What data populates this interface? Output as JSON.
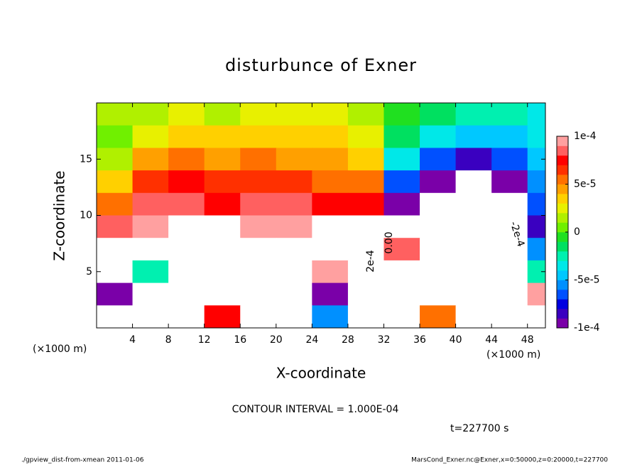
{
  "chart_data": {
    "type": "heatmap",
    "title": "disturbunce of Exner",
    "x_label": "X-coordinate",
    "y_label": "Z-coordinate",
    "x_unit_label": "(×1000 m)",
    "contour_interval_label": "CONTOUR INTERVAL = 1.000E-04",
    "time_label": "t=227700 s",
    "footer_left": "./gpview_dist-from-xmean  2011-01-06",
    "footer_right": "MarsCond_Exner.nc@Exner,x=0:50000,z=0:20000,t=227700",
    "annotations": [
      "2e-4",
      "0.00",
      "-2e-4"
    ],
    "xlim": [
      0,
      50
    ],
    "ylim": [
      0,
      20
    ],
    "xticks": [
      4,
      8,
      12,
      16,
      20,
      24,
      28,
      32,
      36,
      40,
      44,
      48
    ],
    "yticks": [
      5,
      10,
      15
    ],
    "clim": [
      -0.0001,
      0.0001
    ],
    "cticks": [
      {
        "value": 0.0001,
        "label": "1e-4"
      },
      {
        "value": 5e-05,
        "label": "5e-5"
      },
      0,
      {
        "value": -5e-05,
        "label": "-5e-5"
      },
      {
        "value": -0.0001,
        "label": "-1e-4"
      }
    ],
    "colors": [
      "#7a00a8",
      "#3a00c0",
      "#0000e0",
      "#0050ff",
      "#0090ff",
      "#00c8ff",
      "#00e8e8",
      "#00f0b0",
      "#00e060",
      "#20e020",
      "#70f000",
      "#b0f000",
      "#e8f000",
      "#ffd000",
      "#ffa000",
      "#ff7000",
      "#ff3000",
      "#ff0000",
      "#ff6060",
      "#ffa0a0"
    ],
    "x": [
      2,
      6,
      10,
      14,
      18,
      22,
      26,
      30,
      34,
      38,
      42,
      46,
      50
    ],
    "y": [
      19,
      17,
      15,
      13,
      11,
      9,
      7,
      5,
      3,
      1
    ],
    "values": [
      [
        1e-05,
        1.5e-05,
        2e-05,
        1.5e-05,
        2e-05,
        2e-05,
        2e-05,
        1.5e-05,
        -1e-05,
        -2e-05,
        -3e-05,
        -3e-05,
        -4e-05
      ],
      [
        0,
        2.5e-05,
        3.5e-05,
        3e-05,
        3.5e-05,
        3e-05,
        3e-05,
        2.5e-05,
        -2e-05,
        -4e-05,
        -5e-05,
        -5e-05,
        -4e-05
      ],
      [
        1e-05,
        4e-05,
        5e-05,
        4.5e-05,
        5e-05,
        4.5e-05,
        4e-05,
        3.5e-05,
        -4e-05,
        -7e-05,
        -8e-05,
        -7e-05,
        -5e-05
      ],
      [
        3e-05,
        6e-05,
        7e-05,
        6e-05,
        6.5e-05,
        6e-05,
        5.5e-05,
        5e-05,
        -7e-05,
        -0.0001,
        -0.00012,
        -9e-05,
        -6e-05
      ],
      [
        5e-05,
        8e-05,
        8e-05,
        7.5e-05,
        8e-05,
        8e-05,
        7e-05,
        7e-05,
        -9e-05,
        -0.00013,
        -0.00015,
        -0.00012,
        -7e-05
      ],
      [
        8e-05,
        9e-05,
        0.00012,
        0.00011,
        9e-05,
        9e-05,
        0.00012,
        0.00011,
        -0.00011,
        -0.00016,
        -0.00018,
        -0.00014,
        -8e-05
      ],
      [
        0.00013,
        0.00011,
        0.00014,
        0.00012,
        0.00013,
        0.00014,
        0.00015,
        0.00013,
        8e-05,
        -0.00017,
        -0.0002,
        -0.00017,
        -6e-05
      ],
      [
        0.00015,
        -3e-05,
        0.00016,
        0.00014,
        0.00016,
        0.00013,
        9e-05,
        0.0002,
        0.00015,
        -0.00018,
        -0.00023,
        -0.0002,
        -3e-05
      ],
      [
        -0.0001,
        0.00013,
        0.00017,
        0.00011,
        0.00015,
        0.00016,
        -9e-05,
        0.00022,
        0.00014,
        -0.00015,
        -0.00022,
        -0.0002,
        0.0001
      ],
      [
        -0.00015,
        0.00014,
        0.00016,
        7e-05,
        0.00018,
        0.00014,
        -6e-05,
        0.00021,
        0.00013,
        5e-05,
        -0.00018,
        -0.00017,
        0.00012
      ]
    ]
  }
}
